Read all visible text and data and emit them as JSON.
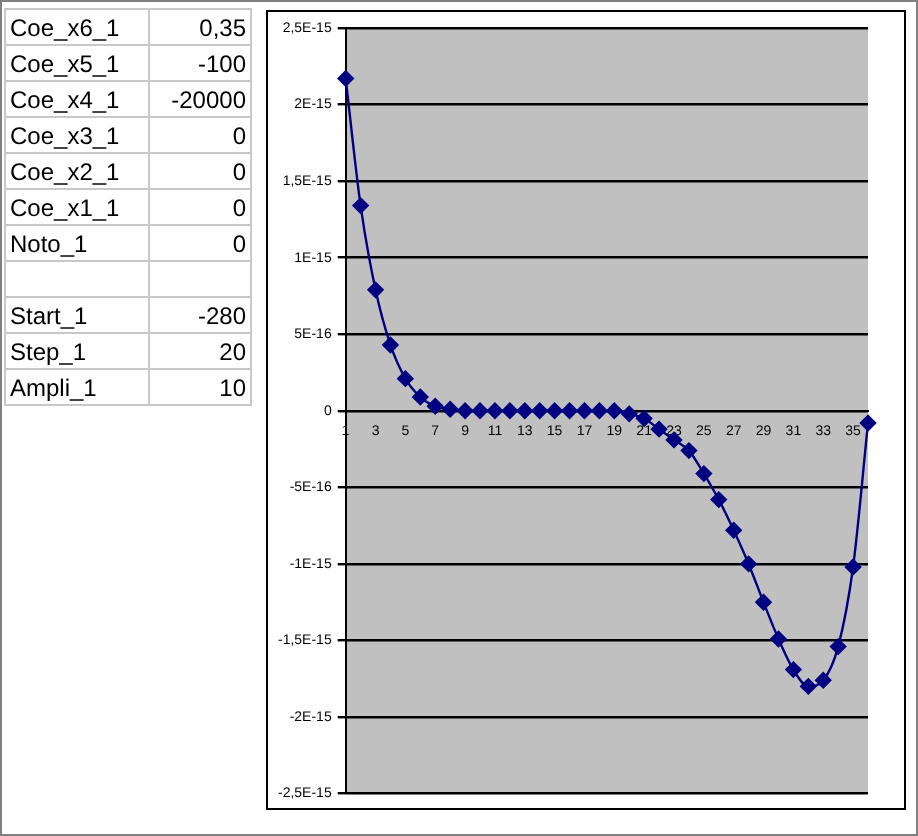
{
  "chart_data": [
    {
      "type": "other",
      "annotations": [
        "Coe_x6_1",
        "0,35",
        "Coe_x5_1",
        "-100",
        "Coe_x4_1",
        "-20000",
        "Coe_x3_1",
        "0",
        "Coe_x2_1",
        "0",
        "Coe_x1_1",
        "0",
        "Noto_1",
        "0",
        "Start_1",
        "-280",
        "Step_1",
        "20",
        "Ampli_1",
        "10"
      ]
    },
    {
      "type": "line",
      "categories": [
        "1",
        null,
        "3",
        null,
        "5",
        null,
        "7",
        null,
        "9",
        null,
        "11",
        null,
        "13",
        null,
        "15",
        null,
        "17",
        null,
        "19",
        null,
        "21",
        null,
        "23",
        null,
        "25",
        null,
        "27",
        null,
        "29",
        null,
        "31",
        null,
        "33",
        null,
        "35",
        null
      ],
      "series": [
        {
          "color": "#000080",
          "values": [
            2.17e-15,
            1.34e-15,
            7.9e-16,
            4.3e-16,
            2.1e-16,
            9e-17,
            3e-17,
            1e-17,
            0,
            0,
            0,
            0,
            0,
            0,
            0,
            0,
            0,
            0,
            0,
            -2e-17,
            -5e-17,
            -1.2e-16,
            -1.9e-16,
            -2.6e-16,
            -4.1e-16,
            -5.8e-16,
            -7.8e-16,
            -1e-15,
            -1.25e-15,
            -1.49e-15,
            -1.69e-15,
            -1.8e-15,
            -1.76e-15,
            -1.54e-15,
            -1.02e-15,
            -8e-17
          ]
        }
      ],
      "ylim": [
        -2.5e-15,
        2.5e-15
      ],
      "yticks": [
        {
          "value": -2.5e-15,
          "label": "-2,5E-15"
        },
        {
          "value": -2e-15,
          "label": "-2E-15"
        },
        {
          "value": -1.5e-15,
          "label": "-1,5E-15"
        },
        {
          "value": -1e-15,
          "label": "-1E-15"
        },
        {
          "value": -5e-16,
          "label": "-5E-16"
        },
        {
          "value": 0,
          "label": "0"
        },
        {
          "value": 5e-16,
          "label": "5E-16"
        },
        {
          "value": 1e-15,
          "label": "1E-15"
        },
        {
          "value": 1.5e-15,
          "label": "1,5E-15"
        },
        {
          "value": 2e-15,
          "label": "2E-15"
        },
        {
          "value": 2.5e-15,
          "label": "2,5E-15"
        }
      ],
      "grid": "y",
      "legend": false,
      "marker": "diamond",
      "line_style": "solid"
    }
  ]
}
